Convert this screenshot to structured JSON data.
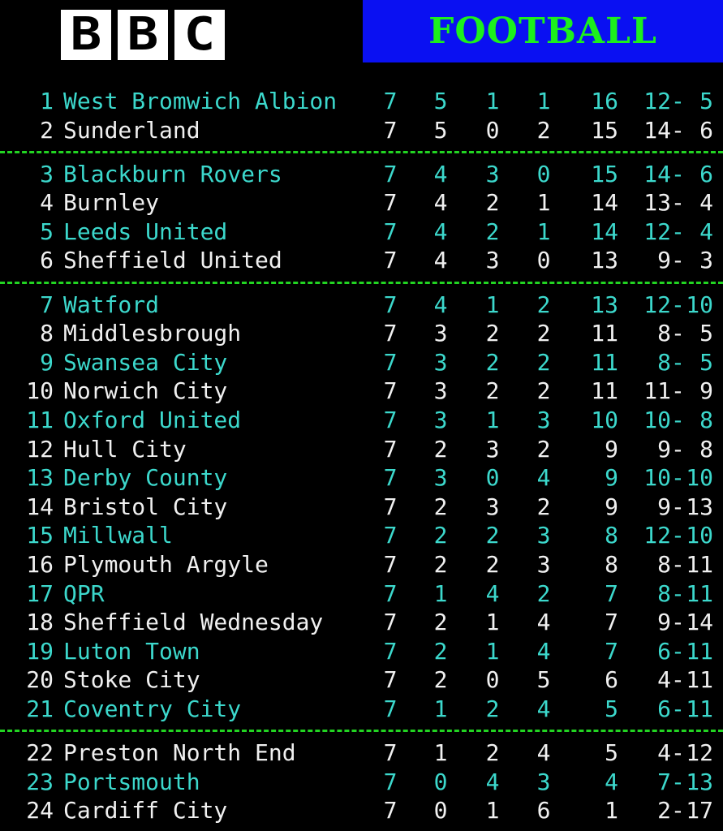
{
  "header": {
    "logo": [
      "B",
      "B",
      "C"
    ],
    "title": "FOOTBALL",
    "colors": {
      "banner_bg": "#0a10f2",
      "banner_text": "#1cf01c",
      "highlight_row": "#3cd8cc",
      "divider": "#22d422"
    }
  },
  "table": {
    "groups": [
      [
        {
          "pos": "1",
          "team": "West Bromwich Albion",
          "p": "7",
          "w": "5",
          "d": "1",
          "l": "1",
          "pts": "16",
          "gf": "12",
          "ga": "5"
        },
        {
          "pos": "2",
          "team": "Sunderland",
          "p": "7",
          "w": "5",
          "d": "0",
          "l": "2",
          "pts": "15",
          "gf": "14",
          "ga": "6"
        }
      ],
      [
        {
          "pos": "3",
          "team": "Blackburn Rovers",
          "p": "7",
          "w": "4",
          "d": "3",
          "l": "0",
          "pts": "15",
          "gf": "14",
          "ga": "6"
        },
        {
          "pos": "4",
          "team": "Burnley",
          "p": "7",
          "w": "4",
          "d": "2",
          "l": "1",
          "pts": "14",
          "gf": "13",
          "ga": "4"
        },
        {
          "pos": "5",
          "team": "Leeds United",
          "p": "7",
          "w": "4",
          "d": "2",
          "l": "1",
          "pts": "14",
          "gf": "12",
          "ga": "4"
        },
        {
          "pos": "6",
          "team": "Sheffield United",
          "p": "7",
          "w": "4",
          "d": "3",
          "l": "0",
          "pts": "13",
          "gf": "9",
          "ga": "3"
        }
      ],
      [
        {
          "pos": "7",
          "team": "Watford",
          "p": "7",
          "w": "4",
          "d": "1",
          "l": "2",
          "pts": "13",
          "gf": "12",
          "ga": "10"
        },
        {
          "pos": "8",
          "team": "Middlesbrough",
          "p": "7",
          "w": "3",
          "d": "2",
          "l": "2",
          "pts": "11",
          "gf": "8",
          "ga": "5"
        },
        {
          "pos": "9",
          "team": "Swansea City",
          "p": "7",
          "w": "3",
          "d": "2",
          "l": "2",
          "pts": "11",
          "gf": "8",
          "ga": "5"
        },
        {
          "pos": "10",
          "team": "Norwich City",
          "p": "7",
          "w": "3",
          "d": "2",
          "l": "2",
          "pts": "11",
          "gf": "11",
          "ga": "9"
        },
        {
          "pos": "11",
          "team": "Oxford United",
          "p": "7",
          "w": "3",
          "d": "1",
          "l": "3",
          "pts": "10",
          "gf": "10",
          "ga": "8"
        },
        {
          "pos": "12",
          "team": "Hull City",
          "p": "7",
          "w": "2",
          "d": "3",
          "l": "2",
          "pts": "9",
          "gf": "9",
          "ga": "8"
        },
        {
          "pos": "13",
          "team": "Derby County",
          "p": "7",
          "w": "3",
          "d": "0",
          "l": "4",
          "pts": "9",
          "gf": "10",
          "ga": "10"
        },
        {
          "pos": "14",
          "team": "Bristol City",
          "p": "7",
          "w": "2",
          "d": "3",
          "l": "2",
          "pts": "9",
          "gf": "9",
          "ga": "13"
        },
        {
          "pos": "15",
          "team": "Millwall",
          "p": "7",
          "w": "2",
          "d": "2",
          "l": "3",
          "pts": "8",
          "gf": "12",
          "ga": "10"
        },
        {
          "pos": "16",
          "team": "Plymouth Argyle",
          "p": "7",
          "w": "2",
          "d": "2",
          "l": "3",
          "pts": "8",
          "gf": "8",
          "ga": "11"
        },
        {
          "pos": "17",
          "team": "QPR",
          "p": "7",
          "w": "1",
          "d": "4",
          "l": "2",
          "pts": "7",
          "gf": "8",
          "ga": "11"
        },
        {
          "pos": "18",
          "team": "Sheffield Wednesday",
          "p": "7",
          "w": "2",
          "d": "1",
          "l": "4",
          "pts": "7",
          "gf": "9",
          "ga": "14"
        },
        {
          "pos": "19",
          "team": "Luton Town",
          "p": "7",
          "w": "2",
          "d": "1",
          "l": "4",
          "pts": "7",
          "gf": "6",
          "ga": "11"
        },
        {
          "pos": "20",
          "team": "Stoke City",
          "p": "7",
          "w": "2",
          "d": "0",
          "l": "5",
          "pts": "6",
          "gf": "4",
          "ga": "11"
        },
        {
          "pos": "21",
          "team": "Coventry City",
          "p": "7",
          "w": "1",
          "d": "2",
          "l": "4",
          "pts": "5",
          "gf": "6",
          "ga": "11"
        }
      ],
      [
        {
          "pos": "22",
          "team": "Preston North End",
          "p": "7",
          "w": "1",
          "d": "2",
          "l": "4",
          "pts": "5",
          "gf": "4",
          "ga": "12"
        },
        {
          "pos": "23",
          "team": "Portsmouth",
          "p": "7",
          "w": "0",
          "d": "4",
          "l": "3",
          "pts": "4",
          "gf": "7",
          "ga": "13"
        },
        {
          "pos": "24",
          "team": "Cardiff City",
          "p": "7",
          "w": "0",
          "d": "1",
          "l": "6",
          "pts": "1",
          "gf": "2",
          "ga": "17"
        }
      ]
    ]
  }
}
